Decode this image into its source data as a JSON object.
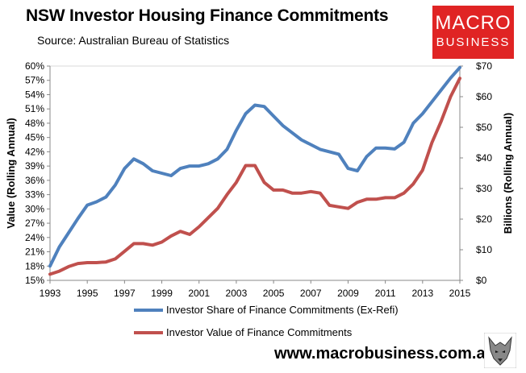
{
  "header": {
    "title": "NSW Investor Housing Finance Commitments",
    "subtitle": "Source: Australian Bureau of Statistics"
  },
  "logo": {
    "line1": "MACRO",
    "line2": "BUSINESS",
    "color": "#e02424"
  },
  "footer": {
    "url": "www.macrobusiness.com.au",
    "icon": "wolf-icon"
  },
  "chart_data": {
    "type": "line",
    "title": "NSW Investor Housing Finance Commitments",
    "xlabel": "",
    "ylabel": "Value (Rolling Annual)",
    "y2label": "Billions (Rolling Annual)",
    "xlim": [
      1993,
      2015
    ],
    "ylim": [
      15,
      60
    ],
    "y2lim": [
      0,
      70
    ],
    "x_ticks": [
      "1993",
      "1995",
      "1997",
      "1999",
      "2001",
      "2003",
      "2005",
      "2007",
      "2009",
      "2011",
      "2013",
      "2015"
    ],
    "y_ticks": [
      "15%",
      "18%",
      "21%",
      "24%",
      "27%",
      "30%",
      "33%",
      "36%",
      "39%",
      "42%",
      "45%",
      "48%",
      "51%",
      "54%",
      "57%",
      "60%"
    ],
    "y2_ticks": [
      "$0",
      "$10",
      "$20",
      "$30",
      "$40",
      "$50",
      "$60",
      "$70"
    ],
    "grid": false,
    "legend_position": "bottom",
    "series": [
      {
        "name": "Investor Share of Finance Commitments (Ex-Refi)",
        "axis": "left",
        "color": "#4f81bd",
        "x": [
          1993.0,
          1993.5,
          1994.0,
          1994.5,
          1995.0,
          1995.5,
          1996.0,
          1996.5,
          1997.0,
          1997.5,
          1998.0,
          1998.5,
          1999.0,
          1999.5,
          2000.0,
          2000.5,
          2001.0,
          2001.5,
          2002.0,
          2002.5,
          2003.0,
          2003.5,
          2004.0,
          2004.5,
          2005.0,
          2005.5,
          2006.0,
          2006.5,
          2007.0,
          2007.5,
          2008.0,
          2008.5,
          2009.0,
          2009.5,
          2010.0,
          2010.5,
          2011.0,
          2011.5,
          2012.0,
          2012.5,
          2013.0,
          2013.5,
          2014.0,
          2014.5,
          2015.0
        ],
        "values": [
          18.0,
          22.0,
          25.0,
          28.0,
          30.8,
          31.5,
          32.5,
          35.0,
          38.5,
          40.5,
          39.5,
          38.0,
          37.5,
          37.0,
          38.5,
          39.0,
          39.0,
          39.5,
          40.5,
          42.5,
          46.5,
          50.0,
          51.8,
          51.5,
          49.5,
          47.5,
          46.0,
          44.5,
          43.5,
          42.5,
          42.0,
          41.5,
          38.5,
          38.0,
          41.0,
          42.8,
          42.8,
          42.6,
          44.0,
          48.0,
          50.0,
          52.5,
          55.0,
          57.5,
          59.7
        ]
      },
      {
        "name": "Investor Value of Finance Commitments",
        "axis": "right",
        "color": "#c0504d",
        "x": [
          1993.0,
          1993.5,
          1994.0,
          1994.5,
          1995.0,
          1995.5,
          1996.0,
          1996.5,
          1997.0,
          1997.5,
          1998.0,
          1998.5,
          1999.0,
          1999.5,
          2000.0,
          2000.5,
          2001.0,
          2001.5,
          2002.0,
          2002.5,
          2003.0,
          2003.5,
          2004.0,
          2004.5,
          2005.0,
          2005.5,
          2006.0,
          2006.5,
          2007.0,
          2007.5,
          2008.0,
          2008.5,
          2009.0,
          2009.5,
          2010.0,
          2010.5,
          2011.0,
          2011.5,
          2012.0,
          2012.5,
          2013.0,
          2013.5,
          2014.0,
          2014.5,
          2015.0
        ],
        "values": [
          2.0,
          3.0,
          4.5,
          5.5,
          5.8,
          5.8,
          6.0,
          7.0,
          9.5,
          12.0,
          12.0,
          11.5,
          12.5,
          14.5,
          16.0,
          15.0,
          17.5,
          20.5,
          23.5,
          28.0,
          32.0,
          37.5,
          37.5,
          32.0,
          29.5,
          29.5,
          28.5,
          28.5,
          29.0,
          28.5,
          24.5,
          24.0,
          23.5,
          25.5,
          26.5,
          26.5,
          27.0,
          27.0,
          28.5,
          31.5,
          36.0,
          45.0,
          52.0,
          60.0,
          66.0
        ]
      }
    ]
  }
}
